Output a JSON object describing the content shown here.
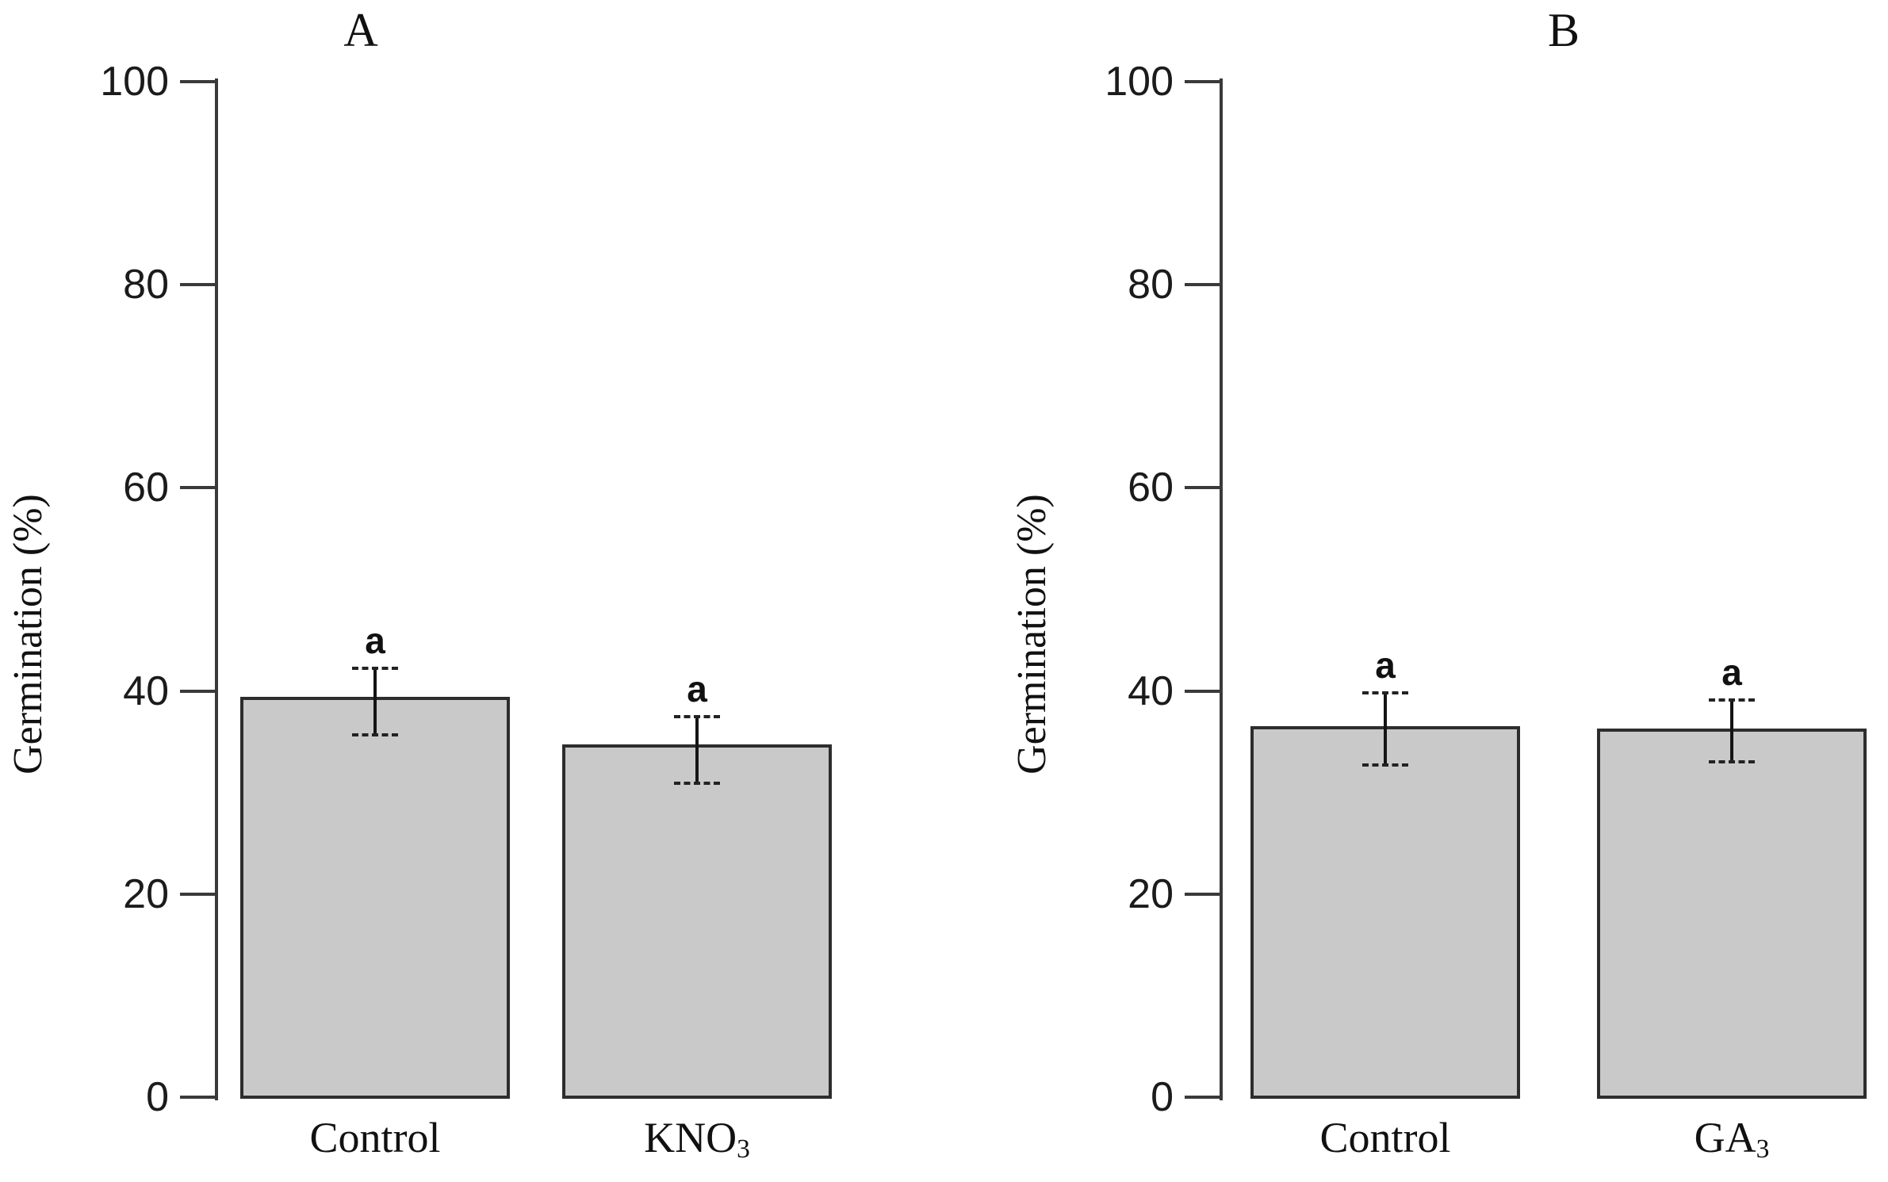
{
  "figure": {
    "background": "#ffffff",
    "bar_fill": "#c9c9c9",
    "bar_border": "#2d2d2d",
    "error_color": "#141414",
    "text_color": "#111111",
    "tick_label_color": "#1b1b1b"
  },
  "chart_data": [
    {
      "type": "bar",
      "panel": "A",
      "title": "A",
      "ylabel": "Germination (%)",
      "xlabel": "",
      "ylim": [
        0,
        100
      ],
      "yticks": [
        0,
        20,
        40,
        60,
        80,
        100
      ],
      "grid": false,
      "legend": "none",
      "categories": [
        {
          "base": "Control",
          "sub": ""
        },
        {
          "base": "KNO",
          "sub": "3"
        }
      ],
      "values": [
        39.4,
        34.7
      ],
      "error_low": [
        35.7,
        30.9
      ],
      "error_high": [
        42.2,
        37.5
      ],
      "sig_letters": [
        "a",
        "a"
      ]
    },
    {
      "type": "bar",
      "panel": "B",
      "title": "B",
      "ylabel": "Germination (%)",
      "xlabel": "",
      "ylim": [
        0,
        100
      ],
      "yticks": [
        0,
        20,
        40,
        60,
        80,
        100
      ],
      "grid": false,
      "legend": "none",
      "categories": [
        {
          "base": "Control",
          "sub": ""
        },
        {
          "base": "GA",
          "sub": "3"
        }
      ],
      "values": [
        36.5,
        36.3
      ],
      "error_low": [
        32.7,
        33.0
      ],
      "error_high": [
        39.8,
        39.1
      ],
      "sig_letters": [
        "a",
        "a"
      ]
    }
  ]
}
